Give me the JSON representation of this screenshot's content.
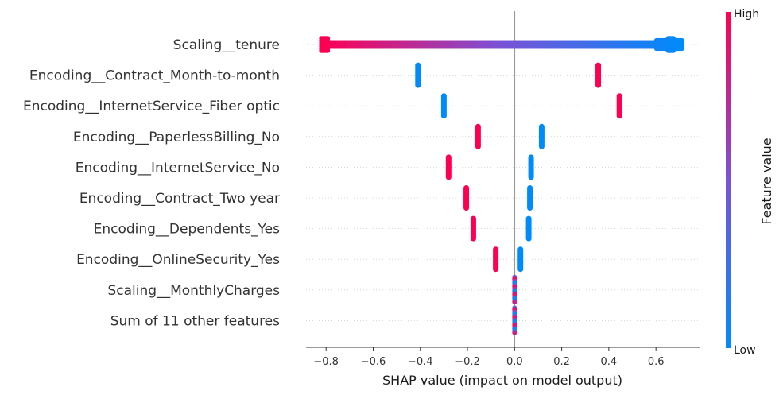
{
  "chart_data": {
    "type": "scatter",
    "subtype": "shap-beeswarm",
    "title": "",
    "xlabel": "SHAP value (impact on model output)",
    "ylabel": "",
    "xlim": [
      -0.885,
      0.785
    ],
    "xticks": [
      {
        "value": -0.8,
        "label": "−0.8"
      },
      {
        "value": -0.6,
        "label": "−0.6"
      },
      {
        "value": -0.4,
        "label": "−0.4"
      },
      {
        "value": -0.2,
        "label": "−0.2"
      },
      {
        "value": 0.0,
        "label": "0.0"
      },
      {
        "value": 0.2,
        "label": "0.2"
      },
      {
        "value": 0.4,
        "label": "0.4"
      },
      {
        "value": 0.6,
        "label": "0.6"
      }
    ],
    "features": [
      {
        "name": "Scaling__tenure",
        "kind": "continuous",
        "min": -0.82,
        "max": 0.71
      },
      {
        "name": "Encoding__Contract_Month-to-month",
        "kind": "binary",
        "clusters": [
          {
            "value": -0.41,
            "level": "low"
          },
          {
            "value": 0.355,
            "level": "high"
          }
        ]
      },
      {
        "name": "Encoding__InternetService_Fiber optic",
        "kind": "binary",
        "clusters": [
          {
            "value": -0.3,
            "level": "low"
          },
          {
            "value": 0.445,
            "level": "high"
          }
        ]
      },
      {
        "name": "Encoding__PaperlessBilling_No",
        "kind": "binary",
        "clusters": [
          {
            "value": -0.155,
            "level": "high"
          },
          {
            "value": 0.115,
            "level": "low"
          }
        ]
      },
      {
        "name": "Encoding__InternetService_No",
        "kind": "binary",
        "clusters": [
          {
            "value": -0.28,
            "level": "high"
          },
          {
            "value": 0.07,
            "level": "low"
          }
        ]
      },
      {
        "name": "Encoding__Contract_Two year",
        "kind": "binary",
        "clusters": [
          {
            "value": -0.205,
            "level": "high"
          },
          {
            "value": 0.065,
            "level": "low"
          }
        ]
      },
      {
        "name": "Encoding__Dependents_Yes",
        "kind": "binary",
        "clusters": [
          {
            "value": -0.175,
            "level": "high"
          },
          {
            "value": 0.06,
            "level": "low"
          }
        ]
      },
      {
        "name": "Encoding__OnlineSecurity_Yes",
        "kind": "binary",
        "clusters": [
          {
            "value": -0.08,
            "level": "high"
          },
          {
            "value": 0.025,
            "level": "low"
          }
        ]
      },
      {
        "name": "Scaling__MonthlyCharges",
        "kind": "near-zero",
        "min": -0.003,
        "max": 0.003
      },
      {
        "name": "Sum of 11 other features",
        "kind": "near-zero",
        "min": -0.003,
        "max": 0.003
      }
    ],
    "colorbar": {
      "title": "Feature value",
      "high_label": "High",
      "low_label": "Low",
      "high_color": "#ff0051",
      "mid_color": "#7b52d6",
      "low_color": "#008bfb"
    },
    "zero_line": true,
    "grid": "dotted horizontal per feature"
  }
}
